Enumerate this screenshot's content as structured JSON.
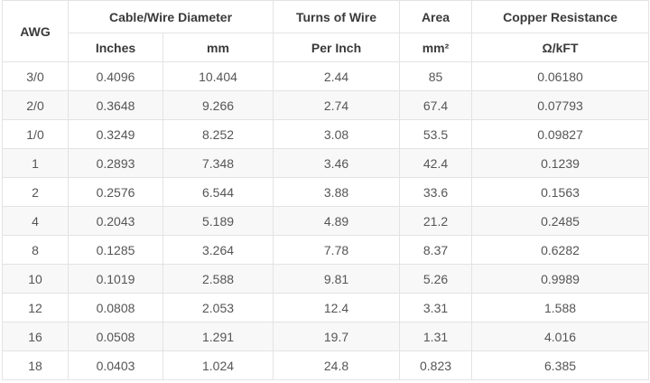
{
  "table": {
    "header": {
      "top": [
        "AWG",
        "Cable/Wire Diameter",
        "Turns of Wire",
        "Area",
        "Copper Resistance"
      ],
      "sub": [
        "Inches",
        "mm",
        "Per Inch",
        "mm²",
        "Ω/kFT"
      ]
    },
    "rows": [
      [
        "3/0",
        "0.4096",
        "10.404",
        "2.44",
        "85",
        "0.06180"
      ],
      [
        "2/0",
        "0.3648",
        "9.266",
        "2.74",
        "67.4",
        "0.07793"
      ],
      [
        "1/0",
        "0.3249",
        "8.252",
        "3.08",
        "53.5",
        "0.09827"
      ],
      [
        "1",
        "0.2893",
        "7.348",
        "3.46",
        "42.4",
        "0.1239"
      ],
      [
        "2",
        "0.2576",
        "6.544",
        "3.88",
        "33.6",
        "0.1563"
      ],
      [
        "4",
        "0.2043",
        "5.189",
        "4.89",
        "21.2",
        "0.2485"
      ],
      [
        "8",
        "0.1285",
        "3.264",
        "7.78",
        "8.37",
        "0.6282"
      ],
      [
        "10",
        "0.1019",
        "2.588",
        "9.81",
        "5.26",
        "0.9989"
      ],
      [
        "12",
        "0.0808",
        "2.053",
        "12.4",
        "3.31",
        "1.588"
      ],
      [
        "16",
        "0.0508",
        "1.291",
        "19.7",
        "1.31",
        "4.016"
      ],
      [
        "18",
        "0.0403",
        "1.024",
        "24.8",
        "0.823",
        "6.385"
      ]
    ]
  }
}
